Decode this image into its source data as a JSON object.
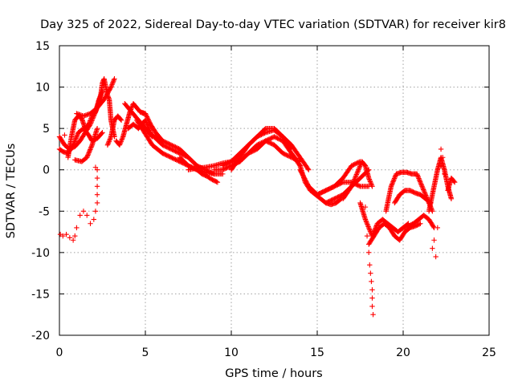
{
  "chart_data": {
    "type": "scatter",
    "title": "Day 325 of 2022, Sidereal Day-to-day VTEC variation (SDTVAR) for receiver kir8",
    "xlabel": "GPS time / hours",
    "ylabel": "SDTVAR / TECUs",
    "xlim": [
      0,
      25
    ],
    "ylim": [
      -20,
      15
    ],
    "xticks": [
      0,
      5,
      10,
      15,
      20,
      25
    ],
    "yticks": [
      -20,
      -15,
      -10,
      -5,
      0,
      5,
      10,
      15
    ],
    "grid": true,
    "marker": "+",
    "series": [
      {
        "name": "SDTVAR",
        "color": "#ff0000",
        "tracks": [
          {
            "x": [
              0.0,
              0.3,
              0.6,
              0.9,
              1.2,
              1.5,
              1.8,
              2.0,
              2.2,
              2.4,
              2.5,
              2.6,
              2.7,
              2.8,
              2.9,
              3.0,
              3.1,
              3.2
            ],
            "y": [
              4.0,
              3.0,
              2.5,
              2.8,
              3.5,
              4.5,
              5.5,
              6.5,
              7.5,
              9.0,
              10.5,
              11.0,
              10.0,
              9.0,
              8.5,
              6.0,
              5.0,
              4.0
            ]
          },
          {
            "x": [
              0.0,
              0.2,
              0.5,
              0.8,
              1.1,
              1.4,
              1.7,
              1.9,
              2.2,
              2.5
            ],
            "y": [
              2.5,
              2.2,
              2.0,
              3.0,
              4.5,
              5.0,
              4.2,
              3.5,
              3.8,
              4.5
            ]
          },
          {
            "x": [
              0.5,
              0.7,
              0.9,
              1.1,
              1.3,
              1.5,
              1.7,
              1.9,
              2.1,
              2.3,
              2.5
            ],
            "y": [
              1.5,
              4.0,
              6.0,
              6.5,
              6.2,
              5.0,
              5.5,
              6.5,
              7.0,
              8.5,
              9.5
            ]
          },
          {
            "x": [
              0.9,
              1.3,
              1.6,
              1.9,
              2.2
            ],
            "y": [
              1.2,
              1.0,
              1.5,
              3.0,
              5.0
            ]
          },
          {
            "x": [
              1.0,
              1.4,
              1.8,
              2.2,
              2.6,
              3.0,
              3.2
            ],
            "y": [
              6.8,
              6.5,
              6.8,
              7.5,
              8.5,
              10.0,
              11.0
            ]
          },
          {
            "x": [
              2.8,
              3.0,
              3.2,
              3.4,
              3.6
            ],
            "y": [
              3.0,
              4.0,
              6.0,
              6.5,
              6.0
            ]
          },
          {
            "x": [
              3.3,
              3.5,
              3.7,
              3.9,
              4.1,
              4.3,
              4.5,
              4.7,
              4.9
            ],
            "y": [
              3.5,
              3.0,
              4.0,
              5.5,
              7.0,
              8.0,
              7.5,
              7.0,
              6.8
            ]
          },
          {
            "x": [
              3.8,
              4.2,
              4.6,
              5.0,
              5.4
            ],
            "y": [
              8.0,
              7.0,
              6.0,
              5.0,
              4.0
            ]
          },
          {
            "x": [
              4.0,
              4.3,
              4.6,
              5.0,
              5.3
            ],
            "y": [
              5.0,
              5.5,
              5.0,
              6.0,
              4.5
            ]
          },
          {
            "x": [
              4.5,
              4.8,
              5.1,
              5.4,
              5.7,
              6.0
            ],
            "y": [
              6.0,
              5.0,
              4.0,
              3.0,
              2.5,
              2.0
            ]
          },
          {
            "x": [
              4.7,
              5.0,
              5.3,
              5.6,
              6.0
            ],
            "y": [
              7.0,
              6.8,
              5.5,
              4.5,
              3.5
            ]
          },
          {
            "x": [
              5.0,
              5.5,
              6.0,
              6.5,
              7.0,
              7.5
            ],
            "y": [
              5.0,
              4.0,
              3.0,
              2.5,
              2.0,
              1.5
            ]
          },
          {
            "x": [
              5.5,
              6.0,
              6.5,
              7.0,
              7.5,
              8.0,
              8.5,
              9.0
            ],
            "y": [
              4.0,
              3.5,
              3.0,
              2.5,
              1.5,
              0.5,
              0.0,
              -0.5
            ]
          },
          {
            "x": [
              6.0,
              6.5,
              7.0,
              7.5,
              8.0,
              8.5,
              9.0,
              9.5
            ],
            "y": [
              2.0,
              1.5,
              1.0,
              0.5,
              0.0,
              -0.3,
              -0.5,
              -0.5
            ]
          },
          {
            "x": [
              7.0,
              7.5,
              8.0,
              8.3,
              8.6,
              8.9,
              9.2
            ],
            "y": [
              1.5,
              0.5,
              0.0,
              -0.5,
              -0.8,
              -1.2,
              -1.5
            ]
          },
          {
            "x": [
              7.5,
              8.0,
              8.5,
              9.0,
              9.5,
              10.0,
              10.5
            ],
            "y": [
              0.0,
              0.2,
              0.3,
              0.5,
              0.8,
              1.0,
              1.0
            ]
          },
          {
            "x": [
              9.0,
              9.5,
              10.0,
              10.5,
              11.0,
              11.5,
              12.0,
              12.5,
              13.0,
              13.5,
              14.0
            ],
            "y": [
              0.0,
              0.0,
              0.5,
              1.0,
              2.0,
              3.0,
              3.5,
              3.0,
              2.0,
              1.5,
              1.0
            ]
          },
          {
            "x": [
              9.5,
              10.0,
              10.5,
              11.0,
              11.5,
              12.0,
              12.5,
              13.0,
              13.5,
              14.0,
              14.5
            ],
            "y": [
              0.5,
              1.0,
              2.0,
              3.0,
              4.0,
              4.5,
              4.8,
              4.0,
              3.0,
              1.5,
              0.0
            ]
          },
          {
            "x": [
              10.0,
              10.5,
              11.0,
              11.5,
              12.0,
              12.5,
              13.0,
              13.5
            ],
            "y": [
              0.0,
              1.5,
              3.0,
              4.0,
              5.0,
              5.0,
              4.0,
              2.5
            ]
          },
          {
            "x": [
              11.0,
              11.5,
              12.0,
              12.5,
              13.0,
              13.5,
              14.0
            ],
            "y": [
              2.0,
              2.5,
              3.5,
              4.0,
              3.5,
              2.0,
              0.5
            ]
          },
          {
            "x": [
              13.5,
              14.0,
              14.3,
              14.6,
              14.9,
              15.2,
              15.5,
              15.8,
              16.1,
              16.4
            ],
            "y": [
              2.0,
              0.5,
              -1.5,
              -2.5,
              -3.0,
              -3.5,
              -4.0,
              -4.2,
              -4.0,
              -3.5
            ]
          },
          {
            "x": [
              14.0,
              14.5,
              15.0,
              15.5,
              16.0,
              16.5,
              17.0,
              17.5
            ],
            "y": [
              0.0,
              -2.0,
              -3.0,
              -2.5,
              -2.0,
              -1.0,
              0.5,
              1.0
            ]
          },
          {
            "x": [
              15.0,
              15.5,
              16.0,
              16.5,
              17.0,
              17.5,
              18.0
            ],
            "y": [
              -3.0,
              -2.5,
              -2.0,
              -1.5,
              -1.5,
              -2.0,
              -2.0
            ]
          },
          {
            "x": [
              15.5,
              16.0,
              16.5,
              17.0,
              17.5,
              18.0
            ],
            "y": [
              -4.0,
              -3.5,
              -3.0,
              -2.0,
              -1.0,
              0.0
            ]
          },
          {
            "x": [
              16.5,
              17.0,
              17.2,
              17.4,
              17.6,
              17.8,
              18.0,
              18.2
            ],
            "y": [
              -3.5,
              -2.0,
              -1.0,
              0.0,
              1.0,
              0.5,
              -1.0,
              -2.0
            ]
          },
          {
            "x": [
              17.5,
              17.8,
              18.0,
              18.2,
              18.5,
              18.8,
              19.1,
              19.4,
              19.7,
              20.0,
              20.3
            ],
            "y": [
              -4.0,
              -6.0,
              -7.0,
              -8.0,
              -6.5,
              -6.0,
              -6.5,
              -7.0,
              -7.5,
              -7.0,
              -6.5
            ]
          },
          {
            "x": [
              18.0,
              18.3,
              18.6,
              18.9,
              19.2,
              19.5,
              19.8,
              20.1,
              20.4,
              20.7,
              21.0
            ],
            "y": [
              -9.0,
              -8.0,
              -7.0,
              -6.5,
              -7.0,
              -8.0,
              -8.5,
              -7.5,
              -7.0,
              -6.8,
              -6.5
            ]
          },
          {
            "x": [
              19.0,
              19.3,
              19.6,
              19.9,
              20.2,
              20.5,
              20.8,
              21.1,
              21.4,
              21.7
            ],
            "y": [
              -5.0,
              -2.0,
              -0.5,
              -0.3,
              -0.3,
              -0.5,
              -0.5,
              -2.0,
              -3.5,
              -5.0
            ]
          },
          {
            "x": [
              19.5,
              19.8,
              20.1,
              20.4,
              20.7,
              21.0,
              21.3,
              21.6
            ],
            "y": [
              -4.0,
              -3.0,
              -2.5,
              -2.5,
              -2.8,
              -3.0,
              -3.5,
              -4.0
            ]
          },
          {
            "x": [
              20.0,
              20.3,
              20.6,
              20.9,
              21.2,
              21.5,
              21.8
            ],
            "y": [
              -7.0,
              -6.8,
              -6.5,
              -6.0,
              -5.5,
              -6.0,
              -7.0
            ]
          },
          {
            "x": [
              21.5,
              21.8,
              22.0,
              22.2,
              22.4,
              22.6,
              22.8
            ],
            "y": [
              -5.0,
              -2.0,
              0.0,
              1.5,
              0.0,
              -2.0,
              -3.5
            ]
          },
          {
            "x": [
              22.6,
              22.8,
              23.0
            ],
            "y": [
              -2.5,
              -1.0,
              -1.5
            ]
          }
        ],
        "points": {
          "x": [
            0.05,
            0.2,
            0.4,
            0.6,
            0.8,
            0.9,
            1.0,
            1.2,
            1.4,
            1.6,
            1.8,
            2.0,
            2.1,
            2.2,
            2.2,
            2.2,
            2.2,
            2.1,
            2.2,
            17.8,
            17.9,
            18.0,
            18.05,
            18.1,
            18.15,
            18.2,
            18.2,
            18.2,
            18.25,
            22.2,
            22.3,
            22.2,
            22.4,
            0.3,
            21.7,
            21.8,
            22.0,
            21.9
          ],
          "y": [
            -7.8,
            -8.0,
            -7.8,
            -8.2,
            -8.5,
            -8.0,
            -7.0,
            -5.5,
            -5.0,
            -5.5,
            -6.5,
            -6.0,
            -5.0,
            -4.0,
            -3.0,
            -2.0,
            -1.0,
            0.3,
            0.0,
            -4.5,
            -8.0,
            -10.0,
            -11.5,
            -12.5,
            -13.5,
            -14.5,
            -15.5,
            -16.5,
            -17.5,
            2.5,
            1.5,
            0.5,
            -0.5,
            4.2,
            -9.5,
            -8.5,
            -7.0,
            -10.5
          ]
        }
      }
    ]
  }
}
